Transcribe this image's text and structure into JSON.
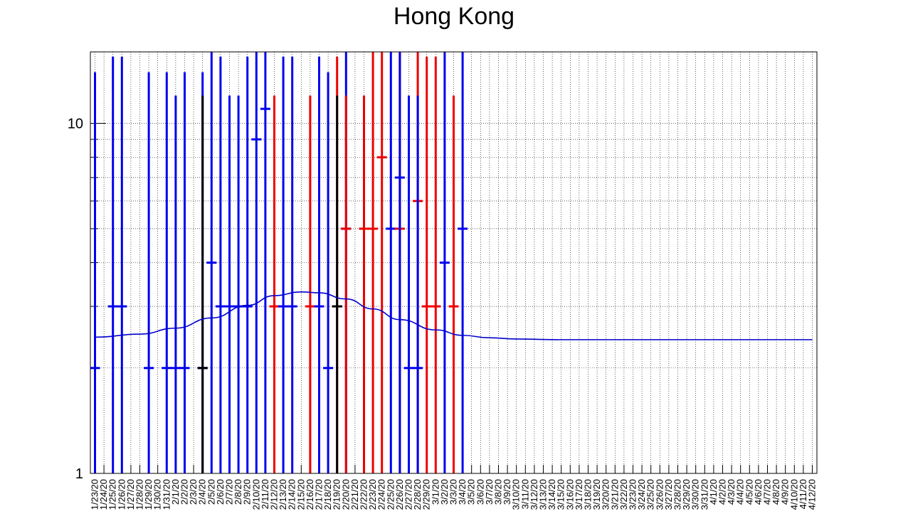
{
  "chart_data": {
    "type": "line",
    "title": "Hong Kong",
    "xlabel": "",
    "ylabel": "",
    "y_scale": "log",
    "ylim": [
      1,
      16
    ],
    "y_ticks": [
      {
        "value": 1,
        "label": "1"
      },
      {
        "value": 10,
        "label": "10"
      }
    ],
    "grid": true,
    "colors": {
      "blue": "#0000ee",
      "red": "#ee0000",
      "black": "#000000",
      "fit": "#0000cc"
    },
    "categories": [
      "1/23/20",
      "1/24/20",
      "1/25/20",
      "1/26/20",
      "1/27/20",
      "1/28/20",
      "1/29/20",
      "1/30/20",
      "1/31/20",
      "2/1/20",
      "2/2/20",
      "2/3/20",
      "2/4/20",
      "2/5/20",
      "2/6/20",
      "2/7/20",
      "2/8/20",
      "2/9/20",
      "2/10/20",
      "2/11/20",
      "2/12/20",
      "2/13/20",
      "2/14/20",
      "2/15/20",
      "2/16/20",
      "2/17/20",
      "2/18/20",
      "2/19/20",
      "2/20/20",
      "2/21/20",
      "2/22/20",
      "2/23/20",
      "2/24/20",
      "2/25/20",
      "2/26/20",
      "2/27/20",
      "2/28/20",
      "2/29/20",
      "3/1/20",
      "3/2/20",
      "3/3/20",
      "3/4/20",
      "3/5/20",
      "3/6/20",
      "3/7/20",
      "3/8/20",
      "3/9/20",
      "3/10/20",
      "3/11/20",
      "3/12/20",
      "3/13/20",
      "3/14/20",
      "3/15/20",
      "3/16/20",
      "3/17/20",
      "3/18/20",
      "3/19/20",
      "3/20/20",
      "3/21/20",
      "3/22/20",
      "3/23/20",
      "3/24/20",
      "3/25/20",
      "3/26/20",
      "3/27/20",
      "3/28/20",
      "3/29/20",
      "3/30/20",
      "3/31/20",
      "4/1/20",
      "4/2/20",
      "4/3/20",
      "4/4/20",
      "4/5/20",
      "4/6/20",
      "4/7/20",
      "4/8/20",
      "4/9/20",
      "4/10/20",
      "4/11/20",
      "4/12/20"
    ],
    "points": [
      {
        "x": "1/23/20",
        "y": 2,
        "err_high": 14,
        "color": "blue"
      },
      {
        "x": "1/25/20",
        "y": 3,
        "err_high": 15.5,
        "color": "blue"
      },
      {
        "x": "1/26/20",
        "y": 3,
        "err_high": 15.5,
        "color": "blue"
      },
      {
        "x": "1/29/20",
        "y": 2,
        "err_high": 14,
        "color": "blue"
      },
      {
        "x": "1/31/20",
        "y": 2,
        "err_high": 14,
        "color": "blue"
      },
      {
        "x": "2/1/20",
        "y": 2,
        "err_high": 12,
        "color": "blue"
      },
      {
        "x": "2/2/20",
        "y": 2,
        "err_high": 14,
        "color": "blue"
      },
      {
        "x": "2/4/20",
        "y": 2,
        "err_high": 14,
        "color": "blue"
      },
      {
        "x": "2/4/20",
        "y": 2,
        "err_high": 12,
        "color": "black"
      },
      {
        "x": "2/5/20",
        "y": 4,
        "err_high": 17,
        "color": "blue"
      },
      {
        "x": "2/6/20",
        "y": 3,
        "err_high": 15.5,
        "color": "blue"
      },
      {
        "x": "2/7/20",
        "y": 3,
        "err_high": 12,
        "color": "blue"
      },
      {
        "x": "2/8/20",
        "y": 3,
        "err_high": 12,
        "color": "blue"
      },
      {
        "x": "2/9/20",
        "y": 3,
        "err_high": 15.5,
        "color": "blue"
      },
      {
        "x": "2/10/20",
        "y": 9,
        "err_high": 20,
        "color": "blue"
      },
      {
        "x": "2/11/20",
        "y": 11,
        "err_high": 20,
        "color": "blue"
      },
      {
        "x": "2/12/20",
        "y": 3,
        "err_high": 12,
        "color": "red"
      },
      {
        "x": "2/13/20",
        "y": 3,
        "err_high": 15.5,
        "color": "blue"
      },
      {
        "x": "2/14/20",
        "y": 3,
        "err_high": 15.5,
        "color": "blue"
      },
      {
        "x": "2/16/20",
        "y": 3,
        "err_high": 12,
        "color": "red"
      },
      {
        "x": "2/17/20",
        "y": 3,
        "err_high": 15.5,
        "color": "blue"
      },
      {
        "x": "2/18/20",
        "y": 2,
        "err_high": 14,
        "color": "blue"
      },
      {
        "x": "2/19/20",
        "y": 3,
        "err_high": 15.5,
        "color": "red"
      },
      {
        "x": "2/19/20",
        "y": 3,
        "err_high": 12,
        "color": "black"
      },
      {
        "x": "2/20/20",
        "y": 5,
        "err_high": 20,
        "color": "blue"
      },
      {
        "x": "2/20/20",
        "y": 5,
        "err_high": 12,
        "color": "red"
      },
      {
        "x": "2/22/20",
        "y": 5,
        "err_high": 12,
        "color": "red"
      },
      {
        "x": "2/23/20",
        "y": 5,
        "err_high": 20,
        "color": "red"
      },
      {
        "x": "2/24/20",
        "y": 8,
        "err_high": 20,
        "color": "red"
      },
      {
        "x": "2/25/20",
        "y": 5,
        "err_high": 20,
        "color": "blue"
      },
      {
        "x": "2/26/20",
        "y": 5,
        "err_high": 20,
        "color": "red"
      },
      {
        "x": "2/26/20",
        "y": 7,
        "err_high": 20,
        "color": "blue"
      },
      {
        "x": "2/27/20",
        "y": 2,
        "err_high": 12,
        "color": "blue"
      },
      {
        "x": "2/28/20",
        "y": 6,
        "err_high": 20,
        "color": "red"
      },
      {
        "x": "2/28/20",
        "y": 2,
        "err_high": 12,
        "color": "blue"
      },
      {
        "x": "2/29/20",
        "y": 3,
        "err_high": 15.5,
        "color": "red"
      },
      {
        "x": "3/1/20",
        "y": 3,
        "err_high": 15.5,
        "color": "red"
      },
      {
        "x": "3/2/20",
        "y": 4,
        "err_high": 17,
        "color": "blue"
      },
      {
        "x": "3/3/20",
        "y": 3,
        "err_high": 12,
        "color": "red"
      },
      {
        "x": "3/4/20",
        "y": 5,
        "err_high": 20,
        "color": "blue"
      }
    ],
    "fit": {
      "x": [
        "1/23/20",
        "1/28/20",
        "2/1/20",
        "2/5/20",
        "2/9/20",
        "2/12/20",
        "2/15/20",
        "2/17/20",
        "2/20/20",
        "2/23/20",
        "2/26/20",
        "3/1/20",
        "3/4/20",
        "3/7/20",
        "3/10/20",
        "3/15/20",
        "4/12/20"
      ],
      "y": [
        2.45,
        2.5,
        2.6,
        2.78,
        3.02,
        3.22,
        3.3,
        3.28,
        3.15,
        2.95,
        2.75,
        2.57,
        2.48,
        2.44,
        2.42,
        2.41,
        2.41
      ]
    }
  }
}
